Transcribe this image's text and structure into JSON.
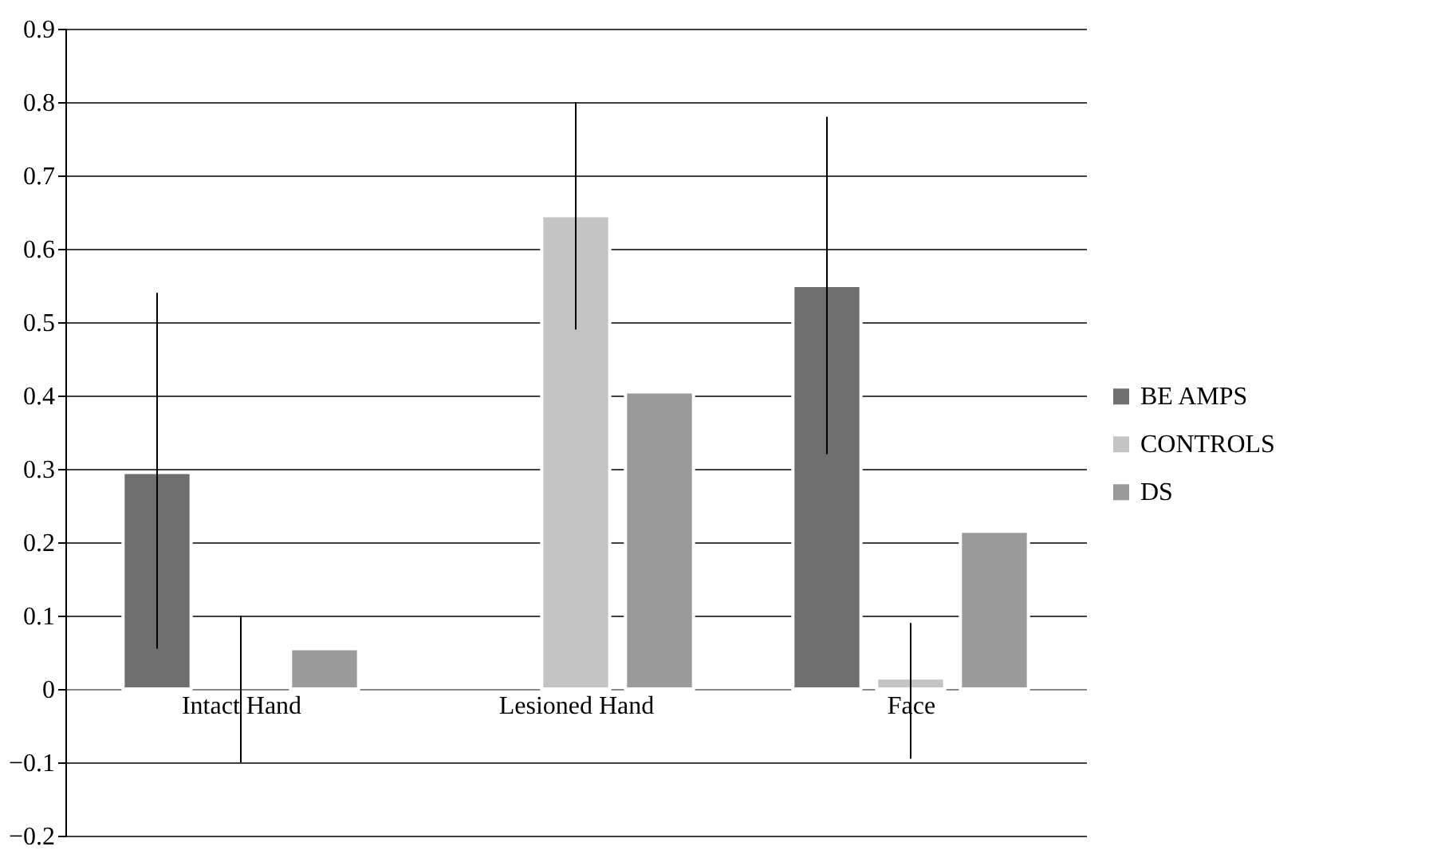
{
  "chart_data": {
    "type": "bar",
    "categories": [
      "Intact Hand",
      "Lesioned Hand",
      "Face"
    ],
    "series": [
      {
        "name": "BE AMPS",
        "color": "#6f6f6f",
        "values": [
          0.295,
          null,
          0.55
        ],
        "errors": [
          [
            0.055,
            0.54
          ],
          null,
          [
            0.32,
            0.78
          ]
        ]
      },
      {
        "name": "CONTROLS",
        "color": "#c4c4c4",
        "values": [
          0,
          0.645,
          0.015
        ],
        "errors": [
          [
            -0.1,
            0.1
          ],
          [
            0.49,
            0.8
          ],
          [
            -0.095,
            0.09
          ]
        ]
      },
      {
        "name": "DS",
        "color": "#9a9a9a",
        "values": [
          0.055,
          0.405,
          0.215
        ],
        "errors": [
          null,
          null,
          null
        ]
      }
    ],
    "ylim": [
      -0.2,
      0.9
    ],
    "yticks": [
      -0.2,
      -0.1,
      0,
      0.1,
      0.2,
      0.3,
      0.4,
      0.5,
      0.6,
      0.7,
      0.8,
      0.9
    ],
    "grid": "y",
    "legend": "right"
  }
}
